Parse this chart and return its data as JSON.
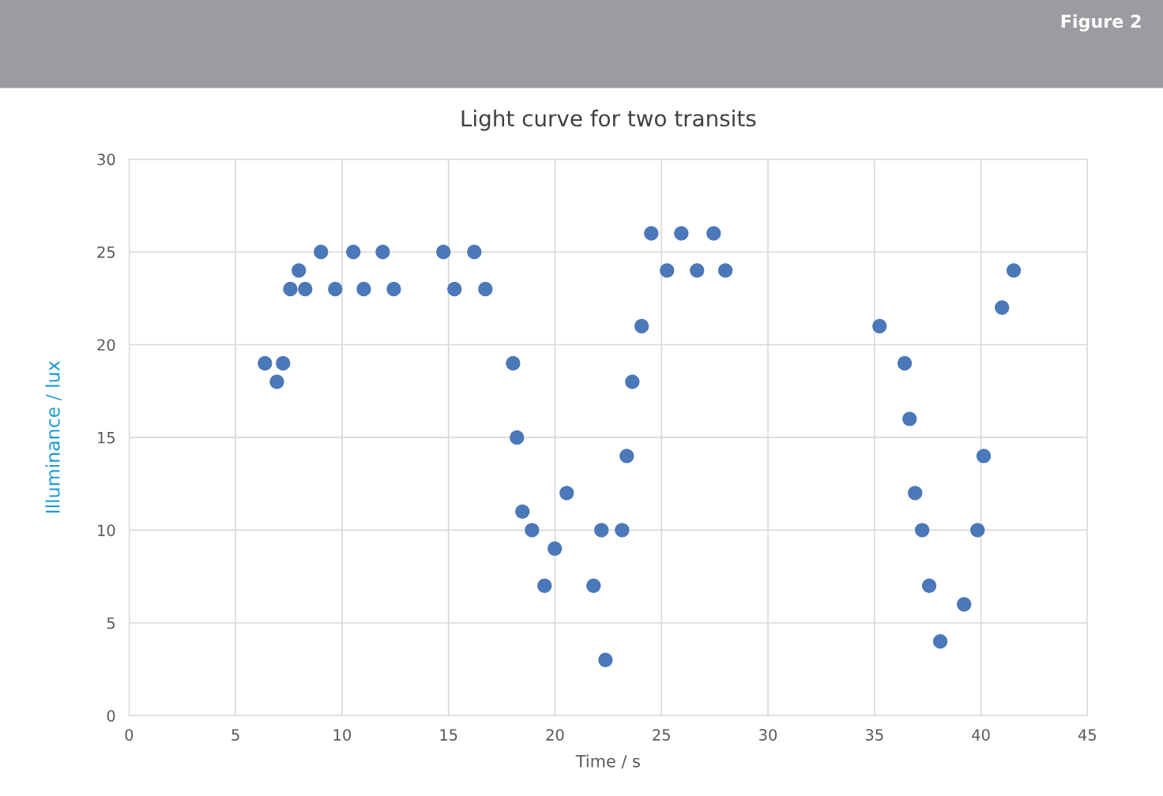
{
  "chart_data": {
    "type": "scatter",
    "title": "Light curve for two transits",
    "xlabel": "Time / s",
    "ylabel": "Illuminance / lux",
    "annotations": [
      "Figure 2"
    ],
    "series": [
      {
        "color": "#4a78b8",
        "x": [
          6.38,
          6.94,
          7.23,
          7.57,
          7.97,
          8.27,
          9.01,
          9.68,
          10.53,
          11.02,
          11.91,
          12.43,
          14.76,
          15.28,
          16.21,
          16.73,
          18.03,
          18.21,
          18.47,
          18.92,
          19.51,
          19.99,
          20.55,
          21.81,
          22.18,
          22.37,
          23.15,
          23.37,
          23.63,
          24.07,
          24.52,
          25.26,
          25.93,
          26.67,
          27.45,
          28.0,
          35.24,
          36.42,
          36.65,
          36.91,
          37.24,
          37.57,
          38.09,
          39.21,
          39.84,
          40.13,
          40.99,
          41.54
        ],
        "values": [
          19,
          18,
          19,
          23,
          24,
          23,
          25,
          23,
          25,
          23,
          25,
          23,
          25,
          23,
          25,
          23,
          19,
          15,
          11,
          10,
          7,
          9,
          12,
          7,
          10,
          3,
          10,
          14,
          18,
          21,
          26,
          24,
          26,
          24,
          26,
          24,
          21,
          19,
          16,
          12,
          10,
          7,
          4,
          6,
          10,
          14,
          22,
          24
        ]
      }
    ],
    "xlim": [
      0,
      45
    ],
    "xticks": [
      0,
      5,
      10,
      15,
      20,
      25,
      30,
      35,
      40,
      45
    ],
    "ylim": [
      0,
      30
    ],
    "yticks": [
      0,
      5,
      10,
      15,
      20,
      25,
      30
    ],
    "grid": true,
    "marker": "circle",
    "legend": false
  }
}
